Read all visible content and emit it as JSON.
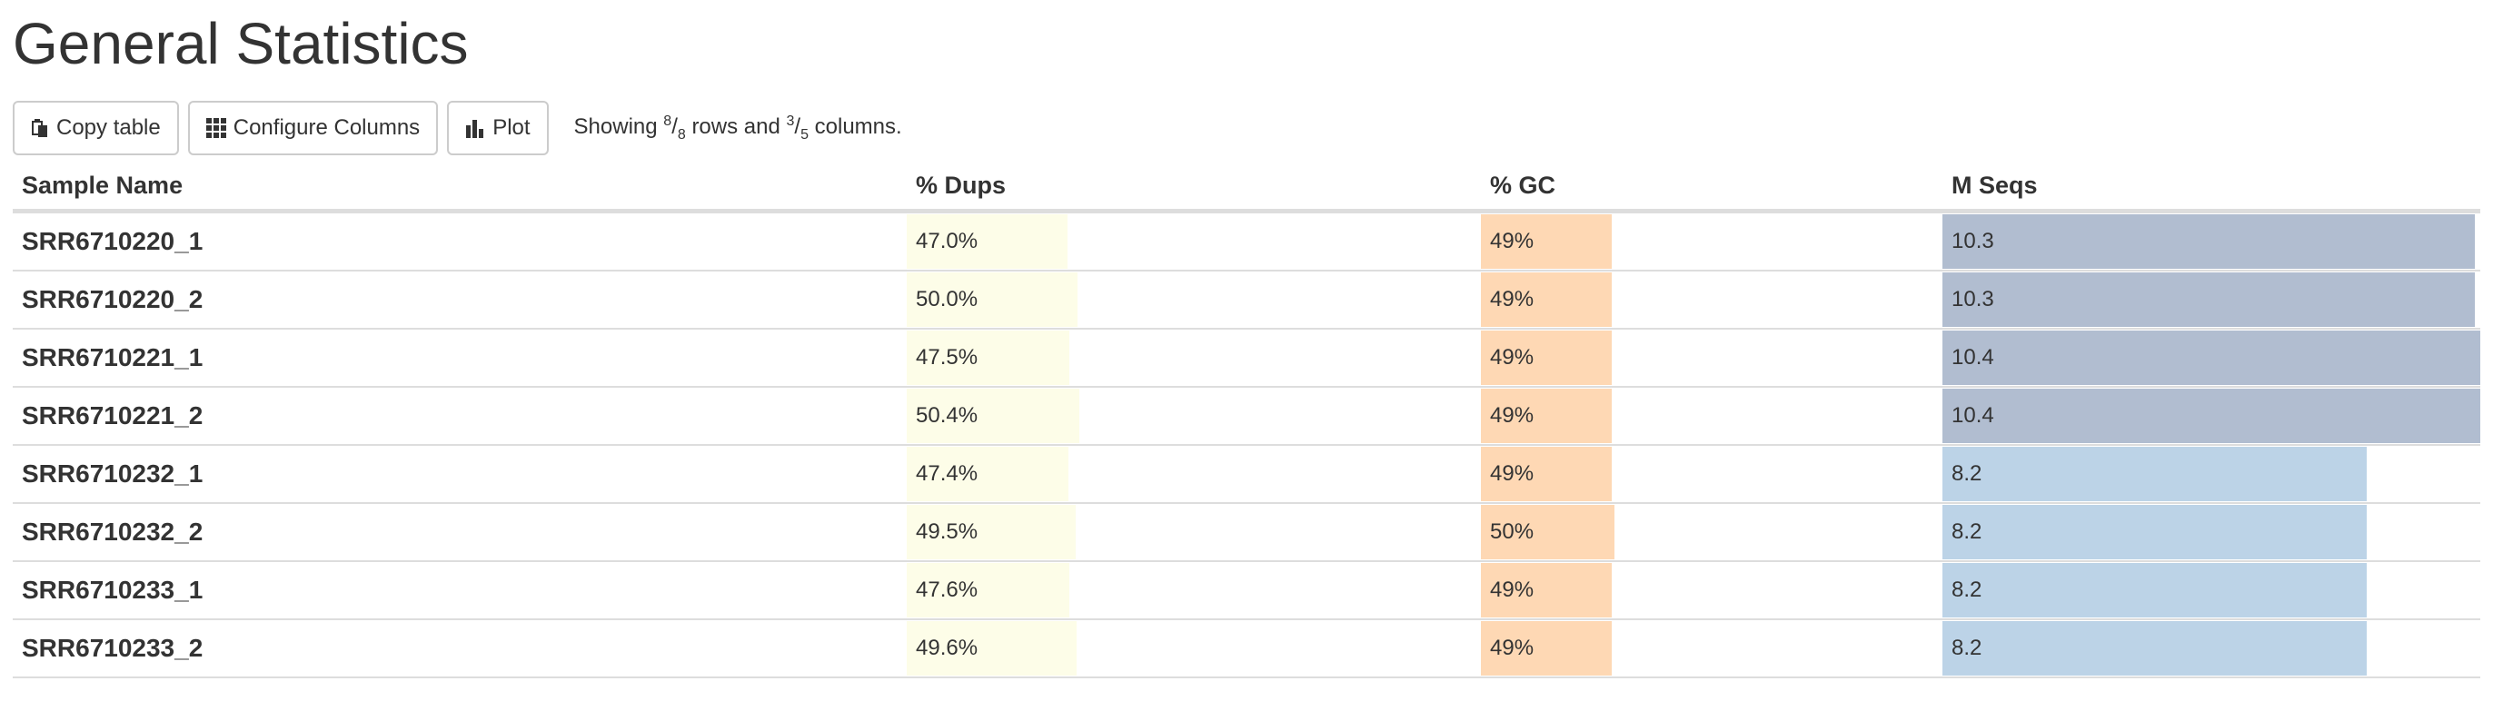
{
  "page": {
    "title": "General Statistics"
  },
  "toolbar": {
    "copy_label": "Copy table",
    "configure_label": "Configure Columns",
    "plot_label": "Plot",
    "showing_prefix": "Showing",
    "rows_shown": "8",
    "rows_total": "8",
    "rows_word": "rows and",
    "cols_shown": "3",
    "cols_total": "5",
    "cols_word": "columns."
  },
  "table": {
    "headers": [
      "Sample Name",
      "% Dups",
      "% GC",
      "M Seqs"
    ],
    "rows": [
      {
        "name": "SRR6710220_1",
        "dups": "47.0%",
        "gc": "49%",
        "mseqs": "10.3"
      },
      {
        "name": "SRR6710220_2",
        "dups": "50.0%",
        "gc": "49%",
        "mseqs": "10.3"
      },
      {
        "name": "SRR6710221_1",
        "dups": "47.5%",
        "gc": "49%",
        "mseqs": "10.4"
      },
      {
        "name": "SRR6710221_2",
        "dups": "50.4%",
        "gc": "49%",
        "mseqs": "10.4"
      },
      {
        "name": "SRR6710232_1",
        "dups": "47.4%",
        "gc": "49%",
        "mseqs": "8.2"
      },
      {
        "name": "SRR6710232_2",
        "dups": "49.5%",
        "gc": "50%",
        "mseqs": "8.2"
      },
      {
        "name": "SRR6710233_1",
        "dups": "47.6%",
        "gc": "49%",
        "mseqs": "8.2"
      },
      {
        "name": "SRR6710233_2",
        "dups": "49.6%",
        "gc": "49%",
        "mseqs": "8.2"
      }
    ]
  },
  "colors": {
    "dups_bar": "#fdfde8",
    "gc_bar": "#fed8b4",
    "mseqs_bar_high": "#b1bdd0",
    "mseqs_bar_low": "#bcd3e7"
  }
}
